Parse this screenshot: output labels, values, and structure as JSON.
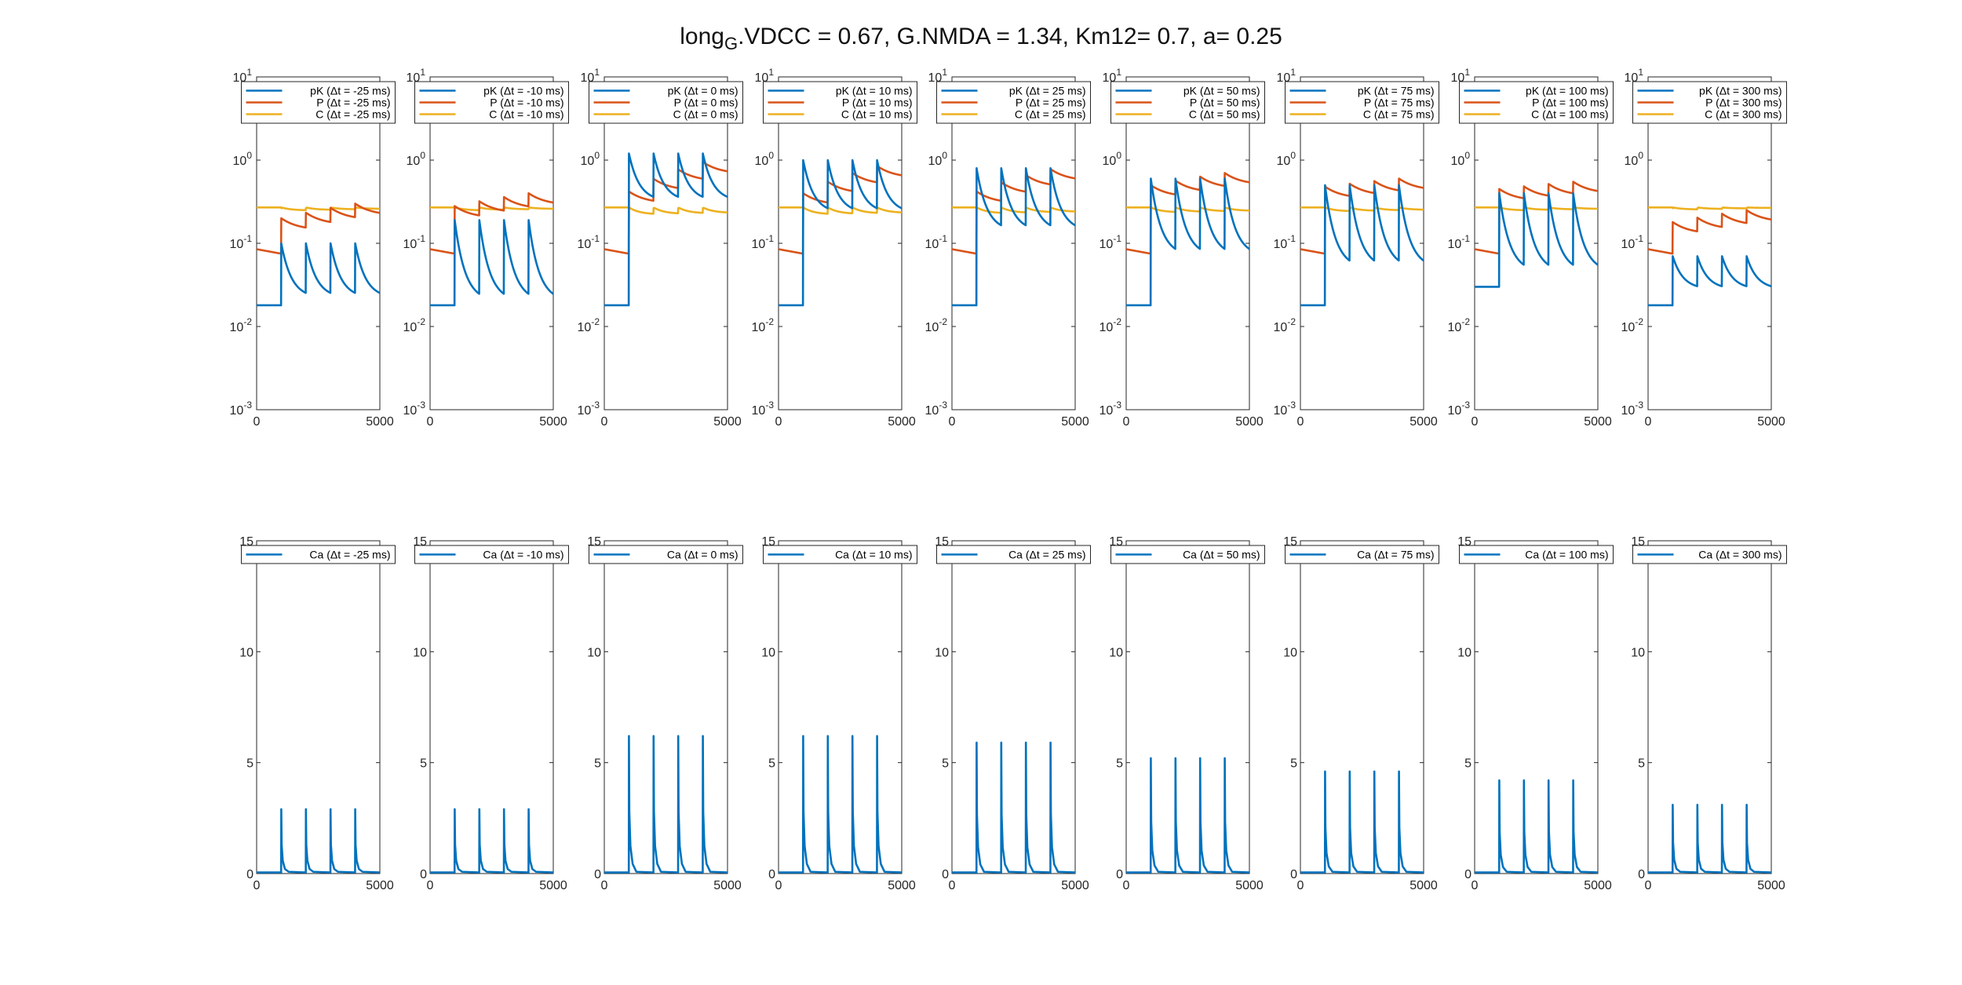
{
  "figure": {
    "title_base": "long",
    "title_sub": "G",
    "title_rest": ".VDCC = 0.67, G.NMDA = 1.34, Km12= 0.7, a= 0.25"
  },
  "colors": {
    "pK": "#0072BD",
    "P": "#D95319",
    "C": "#EDB120",
    "Ca": "#0072BD"
  },
  "chart_data": [
    {
      "row": "top",
      "type": "line",
      "yscale": "log",
      "xlim": [
        0,
        5000
      ],
      "ylim": [
        0.001,
        10
      ],
      "xticks": [
        "0",
        "5000"
      ],
      "yticks": [
        {
          "base": "10",
          "exp": "-3"
        },
        {
          "base": "10",
          "exp": "-2"
        },
        {
          "base": "10",
          "exp": "-1"
        },
        {
          "base": "10",
          "exp": "0"
        },
        {
          "base": "10",
          "exp": "1"
        }
      ],
      "stim_times": [
        1000,
        2000,
        3000,
        4000
      ],
      "panels": [
        {
          "dt": "-25",
          "pK": {
            "base": 0.018,
            "peak": 0.1,
            "end": 0.022
          },
          "P": {
            "base": 0.085,
            "peak": 0.3,
            "end": 0.2
          },
          "C": {
            "base": 0.27,
            "peak": 0.27,
            "end": 0.26
          },
          "legend": [
            "pK (Δt = -25 ms)",
            "P (Δt = -25 ms)",
            "C (Δt = -25 ms)"
          ]
        },
        {
          "dt": "-10",
          "pK": {
            "base": 0.018,
            "peak": 0.19,
            "end": 0.02
          },
          "P": {
            "base": 0.085,
            "peak": 0.4,
            "end": 0.28
          },
          "C": {
            "base": 0.27,
            "peak": 0.27,
            "end": 0.26
          },
          "legend": [
            "pK (Δt = -10 ms)",
            "P (Δt = -10 ms)",
            "C (Δt = -10 ms)"
          ]
        },
        {
          "dt": "0",
          "pK": {
            "base": 0.018,
            "peak": 1.2,
            "end": 0.32
          },
          "P": {
            "base": 0.085,
            "peak": 0.95,
            "end": 0.42
          },
          "C": {
            "base": 0.27,
            "peak": 0.26,
            "end": 0.22
          },
          "legend": [
            "pK (Δt = 0 ms)",
            "P (Δt = 0 ms)",
            "C (Δt = 0 ms)"
          ]
        },
        {
          "dt": "10",
          "pK": {
            "base": 0.018,
            "peak": 1.0,
            "end": 0.23
          },
          "P": {
            "base": 0.085,
            "peak": 0.85,
            "end": 0.4
          },
          "C": {
            "base": 0.27,
            "peak": 0.26,
            "end": 0.22
          },
          "legend": [
            "pK (Δt = 10 ms)",
            "P (Δt = 10 ms)",
            "C (Δt = 10 ms)"
          ]
        },
        {
          "dt": "25",
          "pK": {
            "base": 0.018,
            "peak": 0.8,
            "end": 0.14
          },
          "P": {
            "base": 0.085,
            "peak": 0.78,
            "end": 0.42
          },
          "C": {
            "base": 0.27,
            "peak": 0.26,
            "end": 0.23
          },
          "legend": [
            "pK (Δt = 25 ms)",
            "P (Δt = 25 ms)",
            "C (Δt = 25 ms)"
          ]
        },
        {
          "dt": "50",
          "pK": {
            "base": 0.018,
            "peak": 0.6,
            "end": 0.07
          },
          "P": {
            "base": 0.085,
            "peak": 0.7,
            "end": 0.5
          },
          "C": {
            "base": 0.27,
            "peak": 0.26,
            "end": 0.24
          },
          "legend": [
            "pK (Δt = 50 ms)",
            "P (Δt = 50 ms)",
            "C (Δt = 50 ms)"
          ]
        },
        {
          "dt": "75",
          "pK": {
            "base": 0.018,
            "peak": 0.5,
            "end": 0.05
          },
          "P": {
            "base": 0.085,
            "peak": 0.6,
            "end": 0.48
          },
          "C": {
            "base": 0.27,
            "peak": 0.26,
            "end": 0.25
          },
          "legend": [
            "pK (Δt = 75 ms)",
            "P (Δt = 75 ms)",
            "C (Δt = 75 ms)"
          ]
        },
        {
          "dt": "100",
          "pK": {
            "base": 0.03,
            "peak": 0.4,
            "end": 0.045
          },
          "P": {
            "base": 0.085,
            "peak": 0.55,
            "end": 0.45
          },
          "C": {
            "base": 0.27,
            "peak": 0.26,
            "end": 0.26
          },
          "legend": [
            "pK (Δt = 100 ms)",
            "P (Δt = 100 ms)",
            "C (Δt = 100 ms)"
          ]
        },
        {
          "dt": "300",
          "pK": {
            "base": 0.018,
            "peak": 0.07,
            "end": 0.028
          },
          "P": {
            "base": 0.085,
            "peak": 0.25,
            "end": 0.18
          },
          "C": {
            "base": 0.27,
            "peak": 0.27,
            "end": 0.27
          },
          "legend": [
            "pK (Δt = 300 ms)",
            "P (Δt = 300 ms)",
            "C (Δt = 300 ms)"
          ]
        }
      ]
    },
    {
      "row": "bottom",
      "type": "line",
      "yscale": "linear",
      "xlim": [
        0,
        5000
      ],
      "ylim": [
        0,
        15
      ],
      "xticks": [
        "0",
        "5000"
      ],
      "yticks": [
        "0",
        "5",
        "10",
        "15"
      ],
      "stim_times": [
        1000,
        2000,
        3000,
        4000
      ],
      "panels": [
        {
          "dt": "-25",
          "Ca_peak": 2.9,
          "legend": [
            "Ca (Δt = -25 ms)"
          ]
        },
        {
          "dt": "-10",
          "Ca_peak": 2.9,
          "legend": [
            "Ca (Δt = -10 ms)"
          ]
        },
        {
          "dt": "0",
          "Ca_peak": 6.2,
          "legend": [
            "Ca (Δt = 0 ms)"
          ]
        },
        {
          "dt": "10",
          "Ca_peak": 6.2,
          "legend": [
            "Ca (Δt = 10 ms)"
          ]
        },
        {
          "dt": "25",
          "Ca_peak": 5.9,
          "legend": [
            "Ca (Δt = 25 ms)"
          ]
        },
        {
          "dt": "50",
          "Ca_peak": 5.2,
          "legend": [
            "Ca (Δt = 50 ms)"
          ]
        },
        {
          "dt": "75",
          "Ca_peak": 4.6,
          "legend": [
            "Ca (Δt = 75 ms)"
          ]
        },
        {
          "dt": "100",
          "Ca_peak": 4.2,
          "legend": [
            "Ca (Δt = 100 ms)"
          ]
        },
        {
          "dt": "300",
          "Ca_peak": 3.1,
          "legend": [
            "Ca (Δt = 300 ms)"
          ]
        }
      ]
    }
  ]
}
